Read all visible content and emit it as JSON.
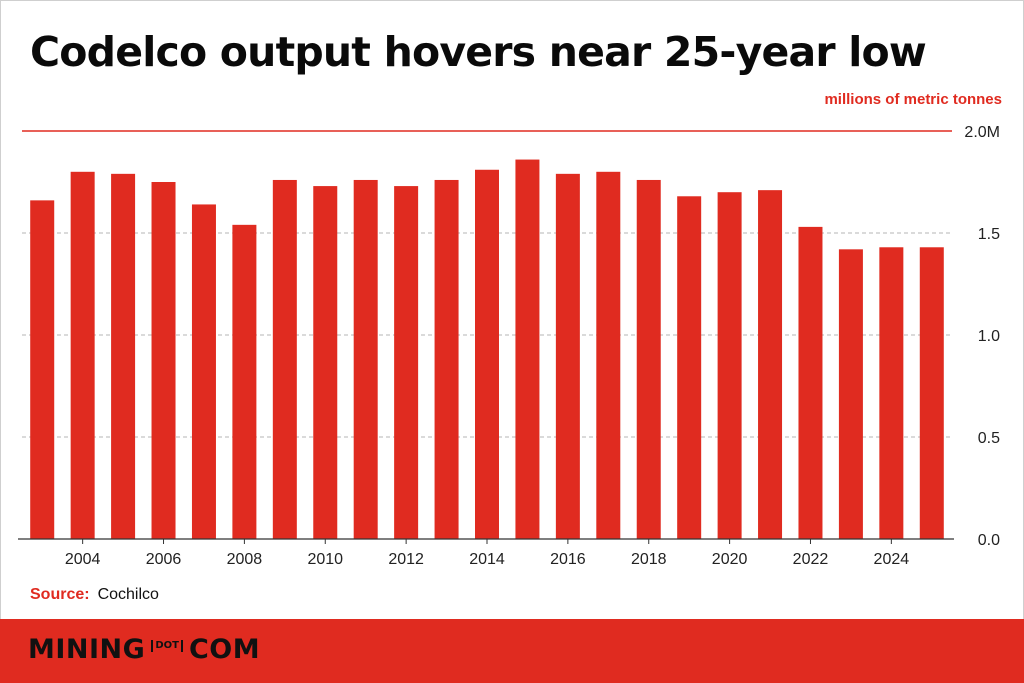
{
  "header": {
    "title": "Codelco output hovers near 25-year low",
    "units": "millions of metric tonnes"
  },
  "source": {
    "label": "Source:",
    "value": "Cochilco"
  },
  "footer": {
    "logo_left": "MINING",
    "logo_mid": "DOT",
    "logo_right": "COM"
  },
  "colors": {
    "bar": "#e02b20",
    "accent": "#e02b20",
    "grid": "#b5b5b5",
    "footer": "#e02b20"
  },
  "chart_data": {
    "type": "bar",
    "categories": [
      "2003",
      "2004",
      "2005",
      "2006",
      "2007",
      "2008",
      "2009",
      "2010",
      "2011",
      "2012",
      "2013",
      "2014",
      "2015",
      "2016",
      "2017",
      "2018",
      "2019",
      "2020",
      "2021",
      "2022",
      "2023",
      "2024",
      "2025"
    ],
    "values": [
      1.66,
      1.8,
      1.79,
      1.75,
      1.64,
      1.54,
      1.76,
      1.73,
      1.76,
      1.73,
      1.76,
      1.81,
      1.86,
      1.79,
      1.8,
      1.76,
      1.68,
      1.7,
      1.71,
      1.53,
      1.42,
      1.43,
      1.43
    ],
    "x_tick_labels": [
      "2004",
      "2006",
      "2008",
      "2010",
      "2012",
      "2014",
      "2016",
      "2018",
      "2020",
      "2022",
      "2024"
    ],
    "y_ticks": [
      0,
      0.5,
      1.0,
      1.5,
      2.0
    ],
    "y_tick_labels": [
      "0.0",
      "0.5",
      "1.0",
      "1.5",
      "2.0M"
    ],
    "ylim": [
      0,
      2.0
    ],
    "ylabel": "millions of metric tonnes",
    "xlabel": "",
    "grid": true,
    "y_axis_side": "right"
  }
}
